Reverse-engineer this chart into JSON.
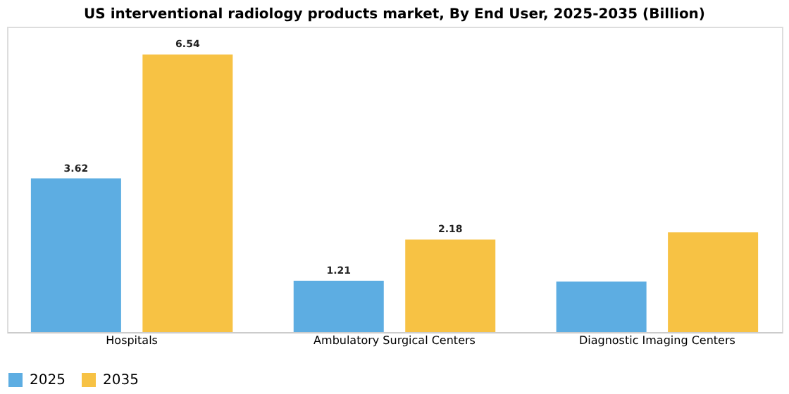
{
  "chart_data": {
    "type": "bar",
    "title": "US interventional radiology products market, By End User, 2025-2035 (Billion)",
    "categories": [
      "Hospitals",
      "Ambulatory Surgical Centers",
      "Diagnostic Imaging Centers"
    ],
    "series": [
      {
        "name": "2025",
        "color": "#5dade2",
        "values": [
          3.62,
          1.21,
          1.19
        ],
        "value_labels": [
          "3.62",
          "1.21",
          null
        ]
      },
      {
        "name": "2035",
        "color": "#f7c244",
        "values": [
          6.54,
          2.18,
          2.35
        ],
        "value_labels": [
          "6.54",
          "2.18",
          null
        ]
      }
    ],
    "legend": "bottom",
    "grid": false
  }
}
